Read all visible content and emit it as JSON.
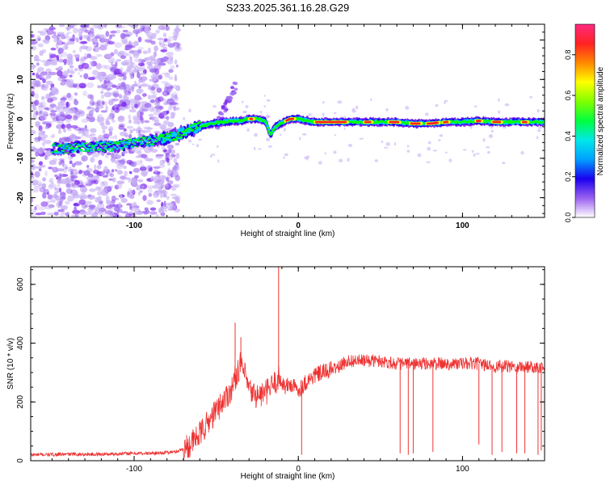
{
  "title": "S233.2025.361.16.28.G29",
  "chart_data": [
    {
      "type": "heatmap",
      "xlabel": "Height of straight line (km)",
      "ylabel": "Frequency (Hz)",
      "xlim": [
        -163,
        150
      ],
      "ylim": [
        -25,
        24
      ],
      "xticks": [
        -100,
        0,
        100
      ],
      "yticks": [
        -20,
        -10,
        0,
        10,
        20
      ],
      "colorbar": {
        "label": "Normalized spectral amplitude",
        "range": [
          0,
          0.95
        ],
        "ticks": [
          0.0,
          0.2,
          0.4,
          0.6,
          0.8
        ],
        "colormap": [
          "#ffffff",
          "#c9b3f5",
          "#7a22ee",
          "#2200ee",
          "#00c8ff",
          "#00f0a0",
          "#00ff00",
          "#aaff00",
          "#ffff00",
          "#ff9900",
          "#ff2222",
          "#ff1f7a"
        ]
      },
      "ridge": {
        "x": [
          -150,
          -140,
          -130,
          -120,
          -110,
          -100,
          -90,
          -80,
          -70,
          -60,
          -50,
          -40,
          -35,
          -30,
          -25,
          -20,
          -17,
          -14,
          -10,
          -5,
          0,
          10,
          20,
          30,
          40,
          50,
          60,
          70,
          80,
          90,
          100,
          110,
          120,
          130,
          140,
          150
        ],
        "y": [
          -7.5,
          -7.5,
          -7,
          -7,
          -7,
          -6,
          -5.5,
          -5,
          -3.5,
          -2,
          -1,
          -0.5,
          -0.5,
          0,
          0,
          -0.5,
          -4,
          -2,
          -1,
          0,
          0,
          -0.8,
          -0.8,
          -0.8,
          -0.8,
          -0.8,
          -0.8,
          -1.2,
          -1.2,
          -0.8,
          -0.8,
          -0.5,
          -0.8,
          -0.8,
          -0.8,
          -0.8
        ]
      }
    },
    {
      "type": "line",
      "xlabel": "Height of straight line (km)",
      "ylabel": "SNR (10 * v/v)",
      "xlim": [
        -163,
        150
      ],
      "ylim": [
        0,
        660
      ],
      "xticks": [
        -100,
        0,
        100
      ],
      "yticks": [
        0,
        200,
        400,
        600
      ],
      "series": [
        {
          "color": "#ee3333",
          "x": [
            -163,
            -140,
            -120,
            -100,
            -90,
            -80,
            -75,
            -70,
            -65,
            -60,
            -55,
            -50,
            -45,
            -40,
            -38,
            -35,
            -32,
            -30,
            -28,
            -25,
            -20,
            -15,
            -12,
            -10,
            -8,
            -5,
            0,
            5,
            10,
            15,
            20,
            25,
            30,
            40,
            50,
            60,
            70,
            80,
            90,
            100,
            110,
            120,
            130,
            140,
            150
          ],
          "values": [
            20,
            22,
            22,
            25,
            25,
            28,
            30,
            40,
            60,
            90,
            130,
            170,
            210,
            250,
            290,
            330,
            280,
            240,
            230,
            220,
            230,
            260,
            280,
            270,
            250,
            260,
            240,
            270,
            290,
            300,
            310,
            320,
            340,
            340,
            340,
            330,
            330,
            330,
            330,
            330,
            330,
            320,
            320,
            320,
            320
          ],
          "spikes": [
            {
              "x": -38.5,
              "value": 470
            },
            {
              "x": -12,
              "value": 660
            },
            {
              "x": -35,
              "value": 420
            },
            {
              "x": 2,
              "value": 20
            },
            {
              "x": 62,
              "value": 25
            },
            {
              "x": 67,
              "value": 20
            },
            {
              "x": 70,
              "value": 25
            },
            {
              "x": 82,
              "value": 30
            },
            {
              "x": 110,
              "value": 55
            },
            {
              "x": 118,
              "value": 20
            },
            {
              "x": 124,
              "value": 30
            },
            {
              "x": 133,
              "value": 25
            },
            {
              "x": 138,
              "value": 25
            },
            {
              "x": 146,
              "value": 20
            },
            {
              "x": 148,
              "value": 35
            }
          ]
        }
      ]
    }
  ]
}
